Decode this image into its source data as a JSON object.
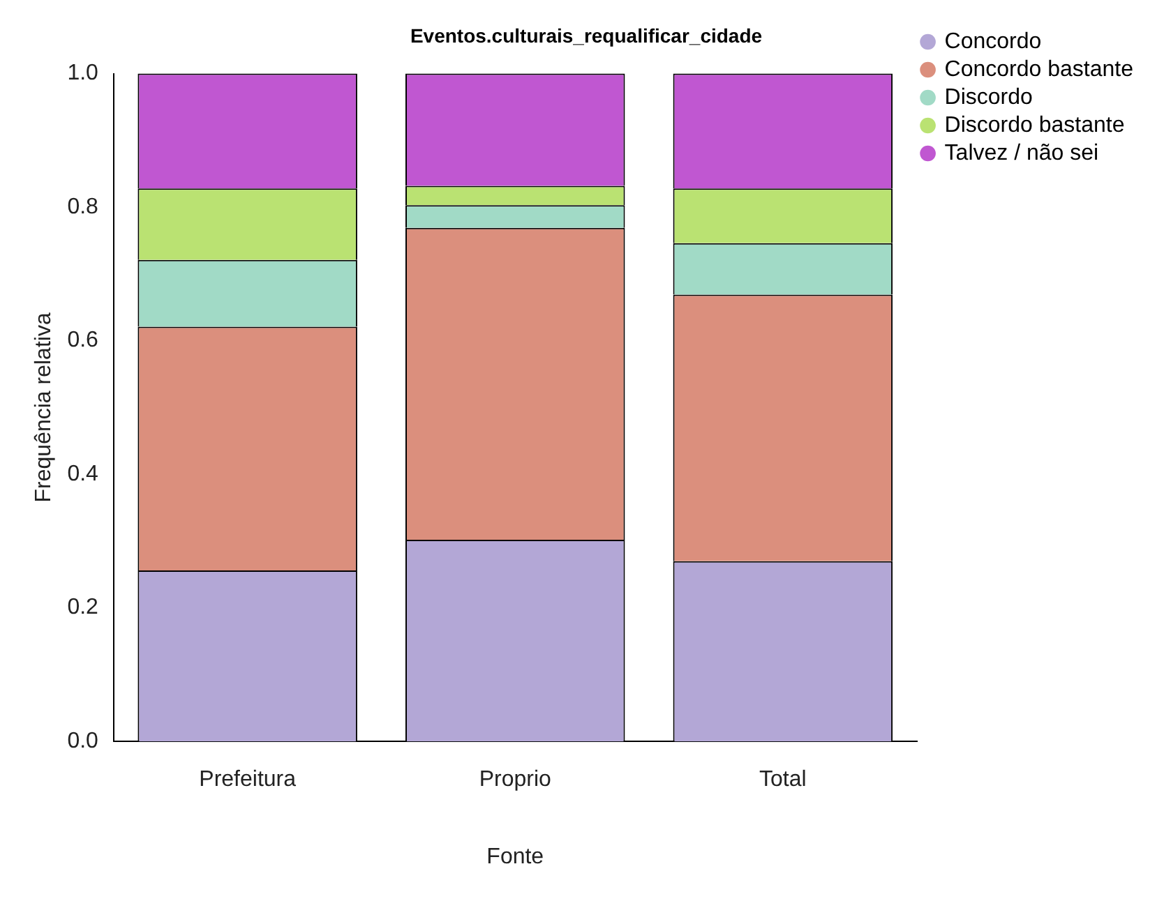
{
  "chart_data": {
    "type": "bar",
    "title": "Eventos.culturais_requalificar_cidade",
    "xlabel": "Fonte",
    "ylabel": "Frequência relativa",
    "categories": [
      "Prefeitura",
      "Proprio",
      "Total"
    ],
    "stacked": true,
    "series": [
      {
        "name": "Concordo",
        "color": "#b3a7d6",
        "values": [
          0.256,
          0.302,
          0.27
        ]
      },
      {
        "name": "Concordo bastante",
        "color": "#db8f7d",
        "values": [
          0.365,
          0.467,
          0.399
        ]
      },
      {
        "name": "Discordo",
        "color": "#a1dac6",
        "values": [
          0.1,
          0.034,
          0.077
        ]
      },
      {
        "name": "Discordo bastante",
        "color": "#bae272",
        "values": [
          0.107,
          0.029,
          0.082
        ]
      },
      {
        "name": "Talvez / não sei",
        "color": "#c057d1",
        "values": [
          0.172,
          0.168,
          0.172
        ]
      }
    ],
    "ylim": [
      0,
      1
    ],
    "yticks": [
      {
        "value": 0,
        "label": "0.0"
      },
      {
        "value": 0.2,
        "label": "0.2"
      },
      {
        "value": 0.4,
        "label": "0.4"
      },
      {
        "value": 0.6,
        "label": "0.6"
      },
      {
        "value": 0.8,
        "label": "0.8"
      },
      {
        "value": 1,
        "label": "1.0"
      }
    ],
    "grid": false,
    "legend": "top right"
  }
}
